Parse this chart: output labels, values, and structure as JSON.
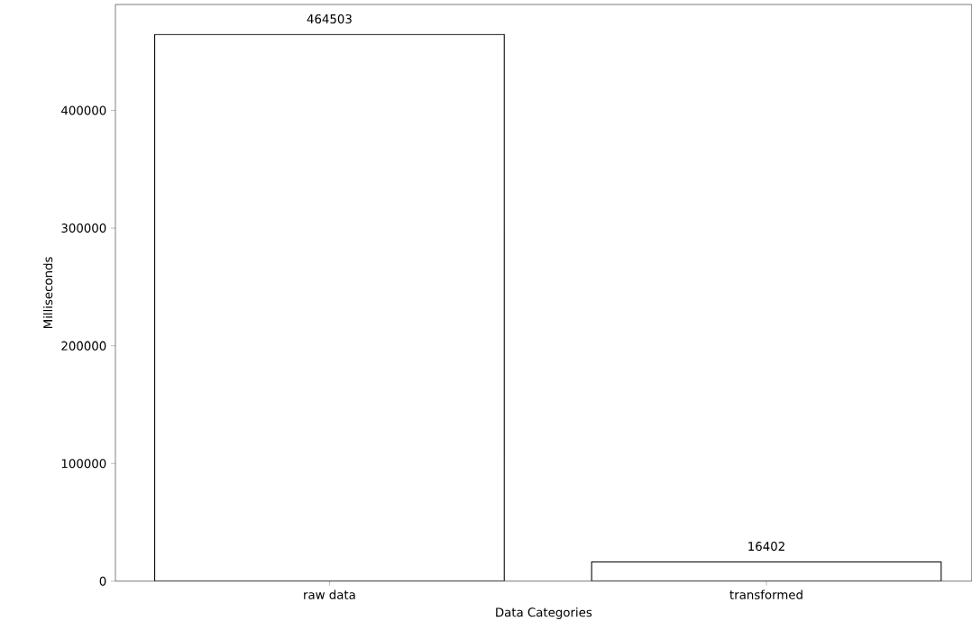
{
  "chart_data": {
    "type": "bar",
    "xlabel": "Data Categories",
    "ylabel": "Milliseconds",
    "categories": [
      "raw data",
      "transformed"
    ],
    "values": [
      464503,
      16402
    ],
    "color": "#ffffff",
    "data_labels": true,
    "ylim": [
      0,
      490000
    ],
    "yticks": [
      0,
      100000,
      200000,
      300000,
      400000
    ],
    "grid": false
  }
}
